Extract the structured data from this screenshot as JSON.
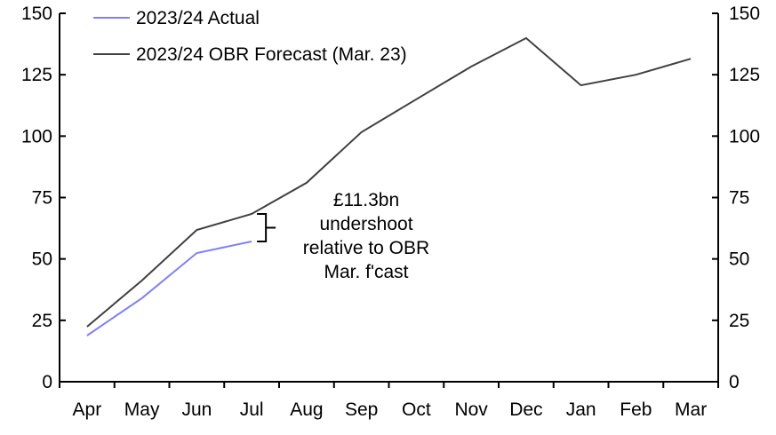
{
  "chart_data": {
    "type": "line",
    "title": "",
    "xlabel": "",
    "ylabel": "",
    "categories": [
      "Apr",
      "May",
      "Jun",
      "Jul",
      "Aug",
      "Sep",
      "Oct",
      "Nov",
      "Dec",
      "Jan",
      "Feb",
      "Mar"
    ],
    "ylim": [
      0,
      150
    ],
    "yticks": [
      0,
      25,
      50,
      75,
      100,
      125,
      150
    ],
    "ytick_labels": [
      "0",
      "25",
      "50",
      "75",
      "100",
      "125",
      "150"
    ],
    "grid": false,
    "legend_placement": "top-left",
    "series": [
      {
        "name": "2023/24 Actual",
        "color": "#7f7fff",
        "values": [
          18.8,
          34.0,
          52.4,
          57.1,
          null,
          null,
          null,
          null,
          null,
          null,
          null,
          null
        ]
      },
      {
        "name": "2023/24 OBR Forecast (Mar. 23)",
        "color": "#404040",
        "values": [
          22.4,
          41.2,
          61.8,
          68.3,
          81.0,
          101.6,
          115.0,
          128.3,
          139.9,
          120.7,
          125.0,
          131.5
        ]
      }
    ],
    "annotation": {
      "lines": [
        "£11.3bn",
        "undershoot",
        "relative to OBR",
        "Mar. f'cast"
      ],
      "category": "Jul"
    }
  }
}
